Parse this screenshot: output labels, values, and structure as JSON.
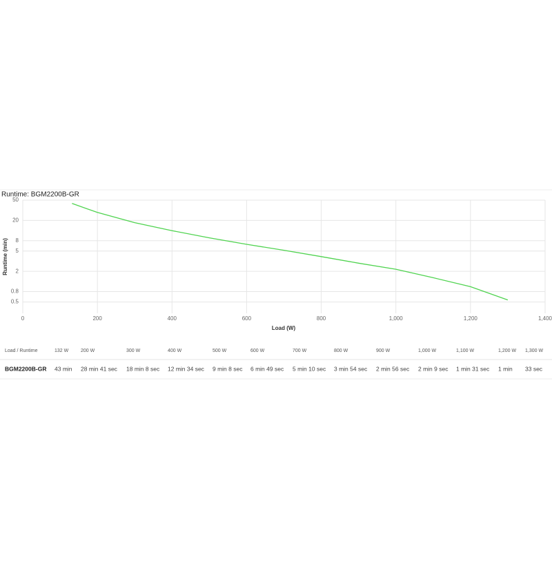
{
  "chart_data": {
    "type": "line",
    "title": "Runtime: BGM2200B-GR",
    "xlabel": "Load (W)",
    "ylabel": "Runtime (min)",
    "x": [
      132,
      200,
      300,
      400,
      500,
      600,
      700,
      800,
      900,
      1000,
      1100,
      1200,
      1300
    ],
    "series": [
      {
        "name": "BGM2200B-GR",
        "color": "#4fd34f",
        "values": [
          43,
          28.7,
          18.1,
          12.6,
          9.1,
          6.8,
          5.2,
          3.9,
          2.9,
          2.2,
          1.5,
          1,
          0.55
        ]
      }
    ],
    "xlim": [
      0,
      1400
    ],
    "xticks": [
      0,
      200,
      400,
      600,
      800,
      {
        "value": 1000,
        "label": "1,000"
      },
      {
        "value": 1200,
        "label": "1,200"
      },
      {
        "value": 1400,
        "label": "1,400"
      }
    ],
    "ylim": [
      0.3,
      50
    ],
    "yticks": [
      50,
      20,
      8,
      5,
      2,
      0.8,
      0.5
    ],
    "yscale": "log",
    "grid": true
  },
  "table": {
    "header": [
      "Load / Runtime",
      "132 W",
      "200 W",
      "300 W",
      "400 W",
      "500 W",
      "600 W",
      "700 W",
      "800 W",
      "900 W",
      "1,000 W",
      "1,100 W",
      "1,200 W",
      "1,300 W"
    ],
    "rows": [
      [
        "BGM2200B-GR",
        "43 min",
        "28 min 41 sec",
        "18 min 8 sec",
        "12 min 34 sec",
        "9 min 8 sec",
        "6 min 49 sec",
        "5 min 10 sec",
        "3 min 54 sec",
        "2 min 56 sec",
        "2 min 9 sec",
        "1 min 31 sec",
        "1 min",
        "33 sec"
      ]
    ]
  }
}
